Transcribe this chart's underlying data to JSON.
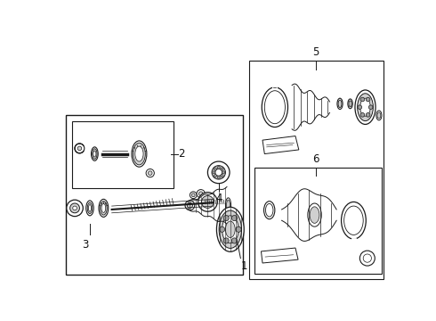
{
  "bg_color": "#ffffff",
  "bg_fill": "#e8e8e8",
  "line_color": "#1a1a1a",
  "fill_light": "#d0d0d0",
  "fill_mid": "#a0a0a0",
  "fill_white": "#ffffff",
  "label_color": "#111111"
}
